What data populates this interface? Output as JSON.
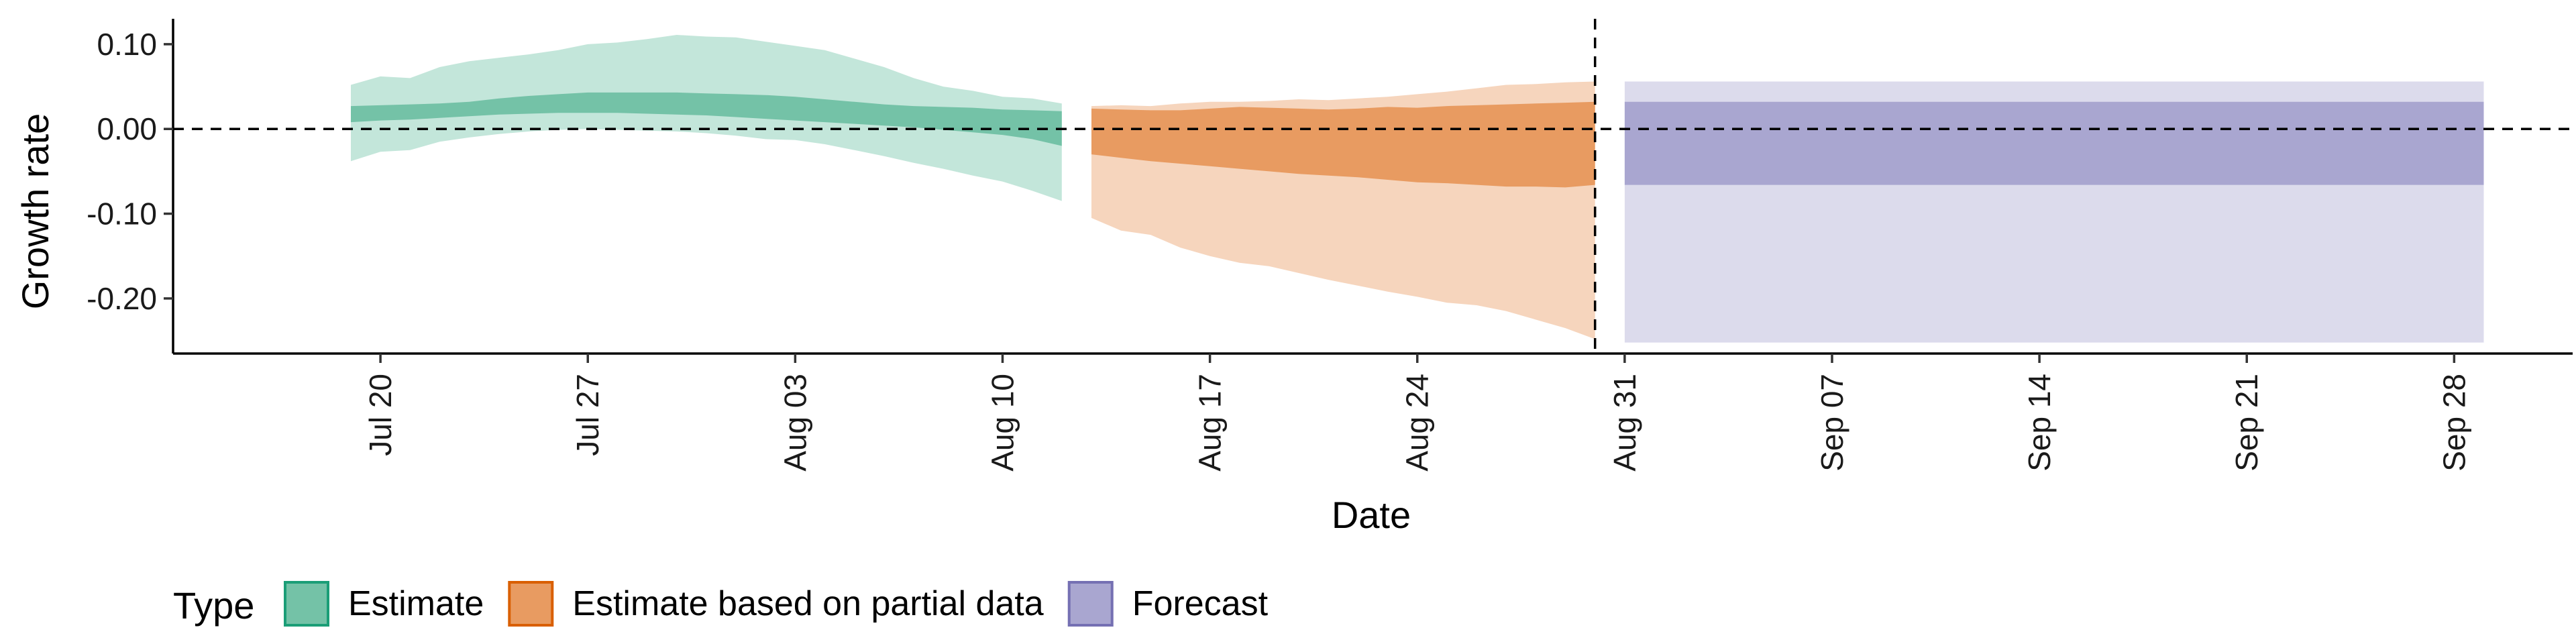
{
  "chart_data": {
    "type": "area",
    "xlabel": "Date",
    "ylabel": "Growth rate",
    "ylim": [
      -0.265,
      0.13
    ],
    "xlim": [
      "2021-07-13",
      "2021-10-02"
    ],
    "x_ticks": [
      {
        "date": "2021-07-20",
        "label": "Jul 20"
      },
      {
        "date": "2021-07-27",
        "label": "Jul 27"
      },
      {
        "date": "2021-08-03",
        "label": "Aug 03"
      },
      {
        "date": "2021-08-10",
        "label": "Aug 10"
      },
      {
        "date": "2021-08-17",
        "label": "Aug 17"
      },
      {
        "date": "2021-08-24",
        "label": "Aug 24"
      },
      {
        "date": "2021-08-31",
        "label": "Aug 31"
      },
      {
        "date": "2021-09-07",
        "label": "Sep 07"
      },
      {
        "date": "2021-09-14",
        "label": "Sep 14"
      },
      {
        "date": "2021-09-21",
        "label": "Sep 21"
      },
      {
        "date": "2021-09-28",
        "label": "Sep 28"
      }
    ],
    "y_ticks": [
      {
        "value": 0.1,
        "label": "0.10"
      },
      {
        "value": 0.0,
        "label": "0.00"
      },
      {
        "value": -0.1,
        "label": "-0.10"
      },
      {
        "value": -0.2,
        "label": "-0.20"
      }
    ],
    "reference_lines": {
      "hline_y": 0.0,
      "vline_date": "2021-08-30"
    },
    "grid": false,
    "legend": {
      "title": "Type",
      "position": "bottom",
      "items": [
        {
          "label": "Estimate",
          "color": "#1b9e77"
        },
        {
          "label": "Estimate based on partial data",
          "color": "#d95f02"
        },
        {
          "label": "Forecast",
          "color": "#7570b3"
        }
      ]
    },
    "series": [
      {
        "name": "Estimate",
        "fill": "#74c2a7",
        "fill_light": "#c3e6da",
        "x": [
          "2021-07-19",
          "2021-07-20",
          "2021-07-21",
          "2021-07-22",
          "2021-07-23",
          "2021-07-24",
          "2021-07-25",
          "2021-07-26",
          "2021-07-27",
          "2021-07-28",
          "2021-07-29",
          "2021-07-30",
          "2021-07-31",
          "2021-08-01",
          "2021-08-02",
          "2021-08-03",
          "2021-08-04",
          "2021-08-05",
          "2021-08-06",
          "2021-08-07",
          "2021-08-08",
          "2021-08-09",
          "2021-08-10",
          "2021-08-11",
          "2021-08-12"
        ],
        "lower90": [
          -0.038,
          -0.027,
          -0.025,
          -0.015,
          -0.01,
          -0.006,
          -0.003,
          -0.001,
          0.0,
          -0.001,
          -0.002,
          -0.003,
          -0.005,
          -0.008,
          -0.012,
          -0.013,
          -0.018,
          -0.025,
          -0.032,
          -0.04,
          -0.047,
          -0.055,
          -0.062,
          -0.073,
          -0.085
        ],
        "lower50": [
          0.008,
          0.01,
          0.011,
          0.013,
          0.015,
          0.017,
          0.018,
          0.019,
          0.019,
          0.019,
          0.018,
          0.017,
          0.016,
          0.014,
          0.012,
          0.01,
          0.008,
          0.006,
          0.004,
          0.002,
          -0.001,
          -0.004,
          -0.007,
          -0.012,
          -0.02
        ],
        "upper50": [
          0.027,
          0.028,
          0.029,
          0.03,
          0.032,
          0.036,
          0.039,
          0.041,
          0.043,
          0.043,
          0.043,
          0.043,
          0.042,
          0.041,
          0.04,
          0.038,
          0.035,
          0.032,
          0.029,
          0.027,
          0.026,
          0.025,
          0.023,
          0.022,
          0.021
        ],
        "upper90": [
          0.052,
          0.062,
          0.06,
          0.073,
          0.08,
          0.084,
          0.088,
          0.093,
          0.1,
          0.102,
          0.106,
          0.111,
          0.109,
          0.108,
          0.103,
          0.098,
          0.093,
          0.083,
          0.073,
          0.06,
          0.05,
          0.045,
          0.038,
          0.036,
          0.03
        ]
      },
      {
        "name": "Estimate based on partial data",
        "fill": "#e89b61",
        "fill_light": "#f6d5bd",
        "x": [
          "2021-08-13",
          "2021-08-14",
          "2021-08-15",
          "2021-08-16",
          "2021-08-17",
          "2021-08-18",
          "2021-08-19",
          "2021-08-20",
          "2021-08-21",
          "2021-08-22",
          "2021-08-23",
          "2021-08-24",
          "2021-08-25",
          "2021-08-26",
          "2021-08-27",
          "2021-08-28",
          "2021-08-29",
          "2021-08-30"
        ],
        "lower90": [
          -0.105,
          -0.12,
          -0.125,
          -0.14,
          -0.15,
          -0.158,
          -0.162,
          -0.17,
          -0.178,
          -0.185,
          -0.192,
          -0.198,
          -0.205,
          -0.208,
          -0.215,
          -0.225,
          -0.235,
          -0.248
        ],
        "lower50": [
          -0.03,
          -0.034,
          -0.038,
          -0.041,
          -0.044,
          -0.047,
          -0.05,
          -0.053,
          -0.055,
          -0.057,
          -0.06,
          -0.063,
          -0.064,
          -0.066,
          -0.068,
          -0.068,
          -0.069,
          -0.066
        ],
        "upper50": [
          0.024,
          0.023,
          0.022,
          0.022,
          0.024,
          0.026,
          0.025,
          0.024,
          0.023,
          0.024,
          0.026,
          0.025,
          0.027,
          0.028,
          0.029,
          0.03,
          0.031,
          0.032
        ],
        "upper90": [
          0.027,
          0.028,
          0.027,
          0.03,
          0.032,
          0.032,
          0.033,
          0.035,
          0.034,
          0.036,
          0.038,
          0.041,
          0.044,
          0.048,
          0.052,
          0.053,
          0.055,
          0.056
        ]
      },
      {
        "name": "Forecast",
        "fill": "#a9a6d0",
        "fill_light": "#dcdbec",
        "x": [
          "2021-08-31",
          "2021-09-29"
        ],
        "lower90": [
          -0.252,
          -0.252
        ],
        "lower50": [
          -0.066,
          -0.066
        ],
        "upper50": [
          0.032,
          0.032
        ],
        "upper90": [
          0.056,
          0.056
        ]
      }
    ]
  }
}
